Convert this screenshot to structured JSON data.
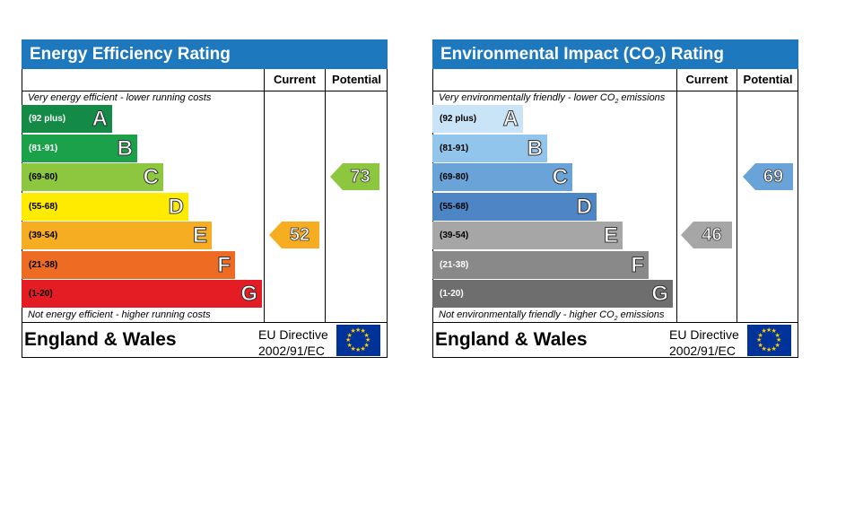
{
  "charts": [
    {
      "id": "eer",
      "title": "Energy Efficiency Rating",
      "title_suffix": "",
      "col_current": "Current",
      "col_potential": "Potential",
      "top_note": "Very energy efficient - lower running costs",
      "bottom_note": "Not energy efficient - higher running costs",
      "region": "England & Wales",
      "directive_line1": "EU Directive",
      "directive_line2": "2002/91/EC",
      "bands": [
        {
          "range": "(92 plus)",
          "letter": "A",
          "color": "#138b46",
          "range_color": "#ffffff"
        },
        {
          "range": "(81-91)",
          "letter": "B",
          "color": "#1aa14a",
          "range_color": "#ffffff"
        },
        {
          "range": "(69-80)",
          "letter": "C",
          "color": "#8dc63f",
          "range_color": "#000000"
        },
        {
          "range": "(55-68)",
          "letter": "D",
          "color": "#ffeb00",
          "range_color": "#000000"
        },
        {
          "range": "(39-54)",
          "letter": "E",
          "color": "#f6ad22",
          "range_color": "#000000"
        },
        {
          "range": "(21-38)",
          "letter": "F",
          "color": "#ee6b24",
          "range_color": "#000000"
        },
        {
          "range": "(1-20)",
          "letter": "G",
          "color": "#e31d23",
          "range_color": "#000000"
        }
      ],
      "current": {
        "value": "52",
        "band": "E",
        "color": "#f6ad22"
      },
      "potential": {
        "value": "73",
        "band": "C",
        "color": "#8dc63f"
      }
    },
    {
      "id": "ei",
      "title": "Environmental Impact (CO",
      "title_sub": "2",
      "title_suffix": ") Rating",
      "col_current": "Current",
      "col_potential": "Potential",
      "top_note": "Very environmentally friendly - lower CO",
      "top_note_sub": "2",
      "top_note_suffix": " emissions",
      "bottom_note": "Not environmentally friendly - higher CO",
      "bottom_note_sub": "2",
      "bottom_note_suffix": " emissions",
      "region": "England & Wales",
      "directive_line1": "EU Directive",
      "directive_line2": "2002/91/EC",
      "bands": [
        {
          "range": "(92 plus)",
          "letter": "A",
          "color": "#c9e4f6",
          "range_color": "#000000"
        },
        {
          "range": "(81-91)",
          "letter": "B",
          "color": "#91c5ec",
          "range_color": "#000000"
        },
        {
          "range": "(69-80)",
          "letter": "C",
          "color": "#6aa3d8",
          "range_color": "#000000"
        },
        {
          "range": "(55-68)",
          "letter": "D",
          "color": "#4d85c5",
          "range_color": "#000000"
        },
        {
          "range": "(39-54)",
          "letter": "E",
          "color": "#a6a6a6",
          "range_color": "#000000"
        },
        {
          "range": "(21-38)",
          "letter": "F",
          "color": "#898989",
          "range_color": "#ffffff"
        },
        {
          "range": "(1-20)",
          "letter": "G",
          "color": "#6e6e6e",
          "range_color": "#ffffff"
        }
      ],
      "current": {
        "value": "46",
        "band": "E",
        "color": "#a6a6a6"
      },
      "potential": {
        "value": "69",
        "band": "C",
        "color": "#6aa3d8"
      }
    }
  ]
}
